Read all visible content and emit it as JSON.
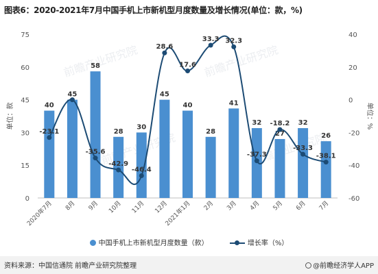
{
  "title": "图表6：2020-2021年7月中国手机上市新机型月度数量及增长情况(单位：款，%)",
  "footer": {
    "source": "资料来源：中国信通院 前瞻产业研究院整理",
    "brand": "@前瞻经济学人APP",
    "watermark": "前瞻产业研究院"
  },
  "colors": {
    "bar": "#4a8fd0",
    "line": "#1c4b74",
    "axis_text": "#555555"
  },
  "chart_data": {
    "type": "bar",
    "categories": [
      "2020年7月",
      "8月",
      "9月",
      "10月",
      "11月",
      "12月",
      "2021年1月",
      "2月",
      "3月",
      "4月",
      "5月",
      "6月",
      "7月"
    ],
    "series": [
      {
        "name": "中国手机上市新机型月度数量（款）",
        "type": "bar",
        "axis": "left",
        "values": [
          40,
          45,
          58,
          28,
          30,
          45,
          40,
          28,
          41,
          32,
          27,
          32,
          26
        ]
      },
      {
        "name": "增长率（%）",
        "type": "line",
        "axis": "right",
        "values": [
          -23.1,
          0,
          -35.6,
          -42.9,
          -46.4,
          28.6,
          17.6,
          33.3,
          32.3,
          -37.3,
          -18.2,
          -33.3,
          -38.1
        ],
        "labels": [
          "-23.1",
          "",
          "-35.6",
          "-42.9",
          "-46.4",
          "28.6",
          "17.6",
          "33.3",
          "32.3",
          "-37.3",
          "-18.2",
          "-33.3",
          "-38.1"
        ]
      }
    ],
    "ylabel_left": "单位：款",
    "ylabel_right": "单位：%",
    "ylim_left": [
      0,
      75
    ],
    "yticks_left": [
      0,
      15,
      30,
      45,
      60,
      75
    ],
    "ylim_right": [
      -60,
      40
    ],
    "yticks_right": [
      -60,
      -40,
      -20,
      0,
      20,
      40
    ],
    "grid": false,
    "legend_position": "bottom"
  }
}
